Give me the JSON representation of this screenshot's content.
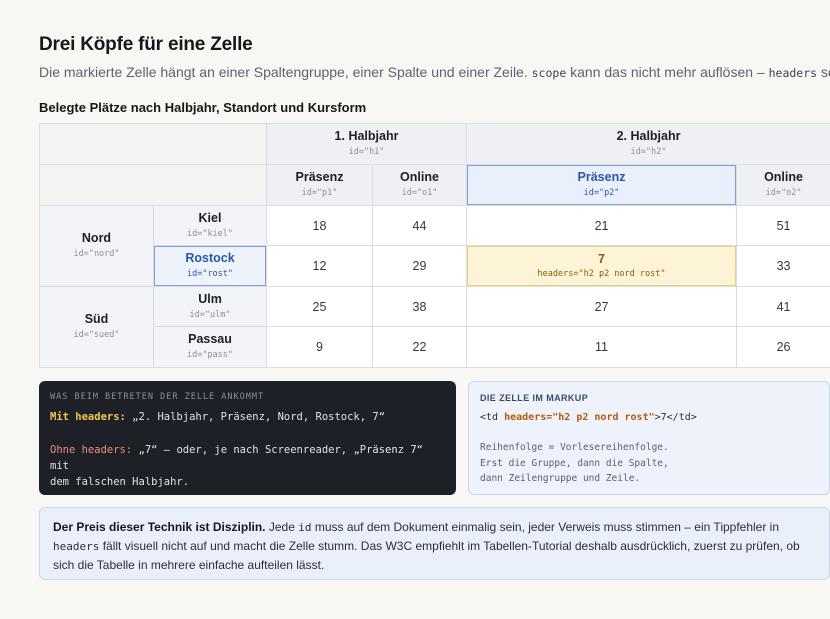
{
  "title": "Drei Köpfe für eine Zelle",
  "subtitle": {
    "part1": "Die markierte Zelle hängt an einer Spaltengruppe, einer Spalte und einer Zeile. ",
    "code1": "scope",
    "part2": " kann das nicht mehr auflösen – ",
    "code2": "headers",
    "part3": " schon."
  },
  "caption": "Belegte Plätze nach Halbjahr, Standort und Kursform",
  "table": {
    "h1": {
      "label": "1. Halbjahr",
      "id": "id=\"h1\""
    },
    "h2": {
      "label": "2. Halbjahr",
      "id": "id=\"h2\""
    },
    "cols": [
      {
        "label": "Präsenz",
        "id": "id=\"p1\""
      },
      {
        "label": "Online",
        "id": "id=\"o1\""
      },
      {
        "label": "Präsenz",
        "id": "id=\"p2\""
      },
      {
        "label": "Online",
        "id": "id=\"o2\""
      }
    ],
    "groups": [
      {
        "label": "Nord",
        "id": "id=\"nord\""
      },
      {
        "label": "Süd",
        "id": "id=\"sued\""
      }
    ],
    "rows": [
      {
        "label": "Kiel",
        "id": "id=\"kiel\"",
        "values": [
          "18",
          "44",
          "21",
          "51"
        ]
      },
      {
        "label": "Rostock",
        "id": "id=\"rost\"",
        "values": [
          "12",
          "29",
          "7",
          "33"
        ]
      },
      {
        "label": "Ulm",
        "id": "id=\"ulm\"",
        "values": [
          "25",
          "38",
          "27",
          "41"
        ]
      },
      {
        "label": "Passau",
        "id": "id=\"pass\"",
        "values": [
          "9",
          "22",
          "11",
          "26"
        ]
      }
    ],
    "target_headers": "headers=\"h2 p2 nord rost\""
  },
  "announce": {
    "kicker": "Was beim Betreten der Zelle ankommt",
    "with_label": "Mit headers:",
    "with_text": " „2. Halbjahr, Präsenz, Nord, Rostock, 7“",
    "without_label": "Ohne headers:",
    "without_text": " „7“ – oder, je nach Screenreader, „Präsenz 7“ mit",
    "without_text2": "dem falschen Halbjahr."
  },
  "markup": {
    "kicker": "Die Zelle im Markup",
    "code_open": "<td ",
    "code_attr": "headers=\"h2 p2 nord rost\"",
    "code_close": ">7</td>",
    "comment1": "Reihenfolge = Vorlesereihenfolge.",
    "comment2": "Erst die Gruppe, dann die Spalte,",
    "comment3": "dann Zeilengruppe und Zeile."
  },
  "note": {
    "bold": "Der Preis dieser Technik ist Disziplin.",
    "t1": " Jede ",
    "c1": "id",
    "t2": " muss auf dem Dokument einmalig sein, jeder Verweis muss stimmen – ein Tippfehler in ",
    "c2": "headers",
    "t3": " fällt visuell nicht auf und macht die Zelle stumm. Das W3C empfiehlt im Tabellen-Tutorial deshalb ausdrücklich, zuerst zu prüfen, ob sich die Tabelle in mehrere einfache aufteilen lässt."
  }
}
